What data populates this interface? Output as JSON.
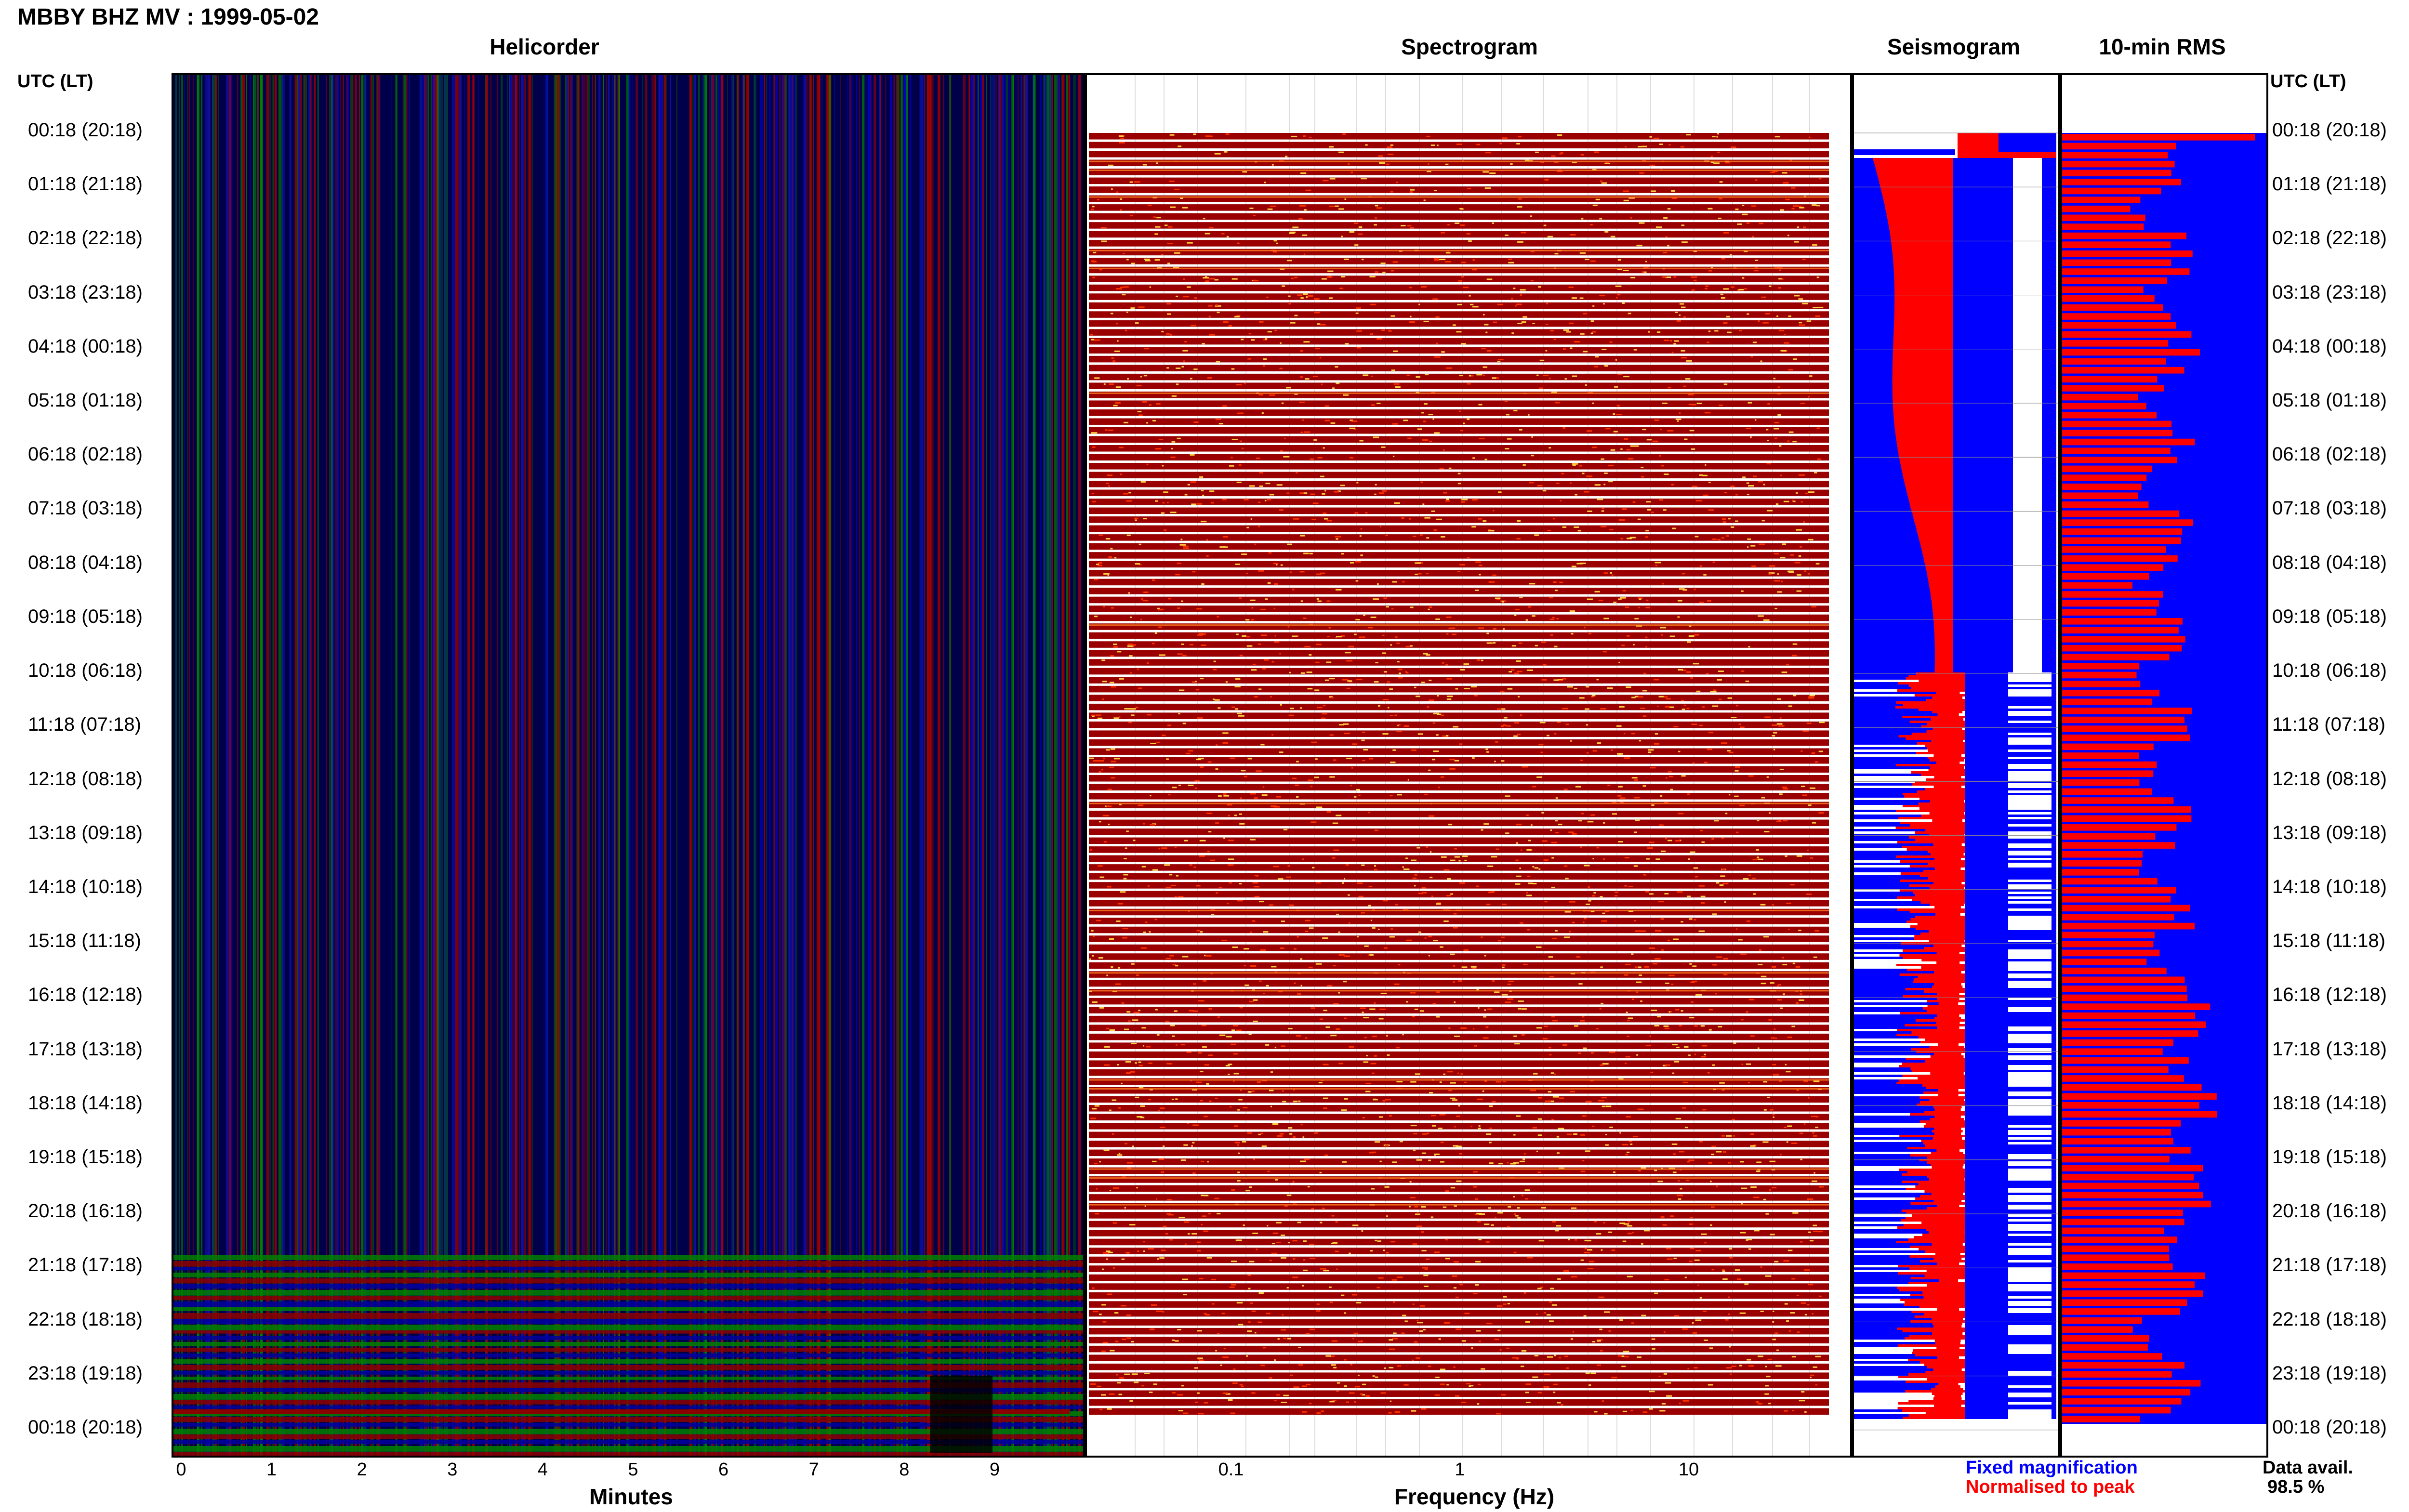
{
  "header": {
    "title": "MBBY BHZ MV : 1999-05-02"
  },
  "panels": {
    "helicorder": {
      "title": "Helicorder",
      "xlabel": "Minutes",
      "xticks": [
        "0",
        "1",
        "2",
        "3",
        "4",
        "5",
        "6",
        "7",
        "8",
        "9"
      ]
    },
    "spectrogram": {
      "title": "Spectrogram",
      "xlabel": "Frequency (Hz)",
      "xticks": [
        "0.1",
        "1",
        "10"
      ],
      "xscale": "log"
    },
    "seismogram": {
      "title": "Seismogram"
    },
    "rms": {
      "title": "10-min RMS"
    }
  },
  "time_axis": {
    "header_left": "UTC (LT)",
    "header_right": "UTC (LT)",
    "labels": [
      "00:18 (20:18)",
      "01:18 (21:18)",
      "02:18 (22:18)",
      "03:18 (23:18)",
      "04:18 (00:18)",
      "05:18 (01:18)",
      "06:18 (02:18)",
      "07:18 (03:18)",
      "08:18 (04:18)",
      "09:18 (05:18)",
      "10:18 (06:18)",
      "11:18 (07:18)",
      "12:18 (08:18)",
      "13:18 (09:18)",
      "14:18 (10:18)",
      "15:18 (11:18)",
      "16:18 (12:18)",
      "17:18 (13:18)",
      "18:18 (14:18)",
      "19:18 (15:18)",
      "20:18 (16:18)",
      "21:18 (17:18)",
      "22:18 (18:18)",
      "23:18 (19:18)",
      "00:18 (20:18)"
    ]
  },
  "legend": {
    "fixed": "Fixed magnification",
    "normalised": "Normalised to peak",
    "fixed_color": "#0000ff",
    "normalised_color": "#ff0000"
  },
  "data_availability": {
    "label": "Data avail.",
    "value": "98.5 %"
  },
  "colors": {
    "blue": "#0000ff",
    "red": "#ff0000",
    "green": "#00a000",
    "darkred": "#8b0000",
    "navy": "#000060"
  }
}
